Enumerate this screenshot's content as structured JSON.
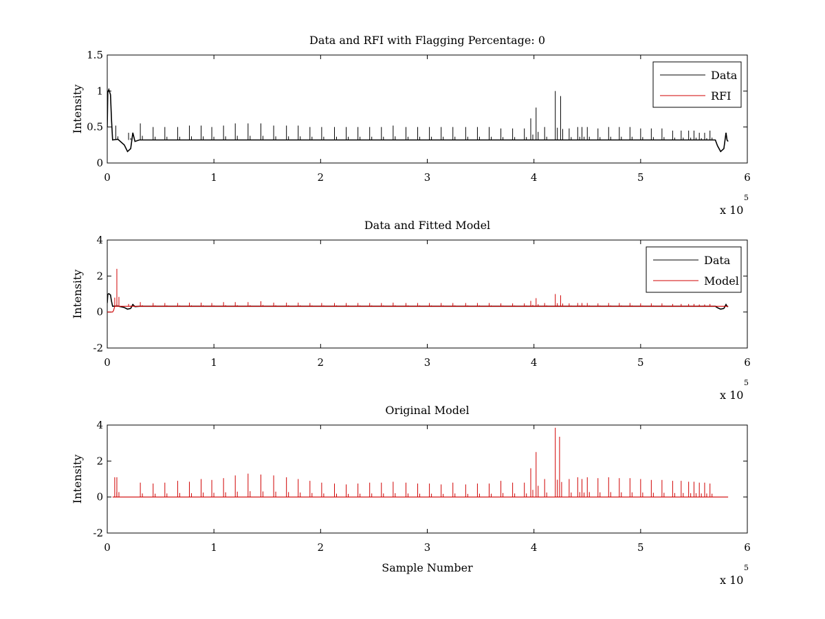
{
  "colors": {
    "data": "#000000",
    "rfi": "#d00000",
    "model": "#d00000",
    "axes": "#000000",
    "background": "#ffffff"
  },
  "chart_data": [
    {
      "type": "line",
      "title": "Data and RFI with Flagging Percentage: 0",
      "xlabel": "",
      "ylabel": "Intensity",
      "xlim": [
        0,
        6
      ],
      "ylim": [
        0,
        1.5
      ],
      "x_exponent_base": "x 10",
      "x_exponent_power": "5",
      "x_ticks": [
        0,
        1,
        2,
        3,
        4,
        5,
        6
      ],
      "y_ticks": [
        0,
        0.5,
        1,
        1.5
      ],
      "x_tick_labels": [
        "0",
        "1",
        "2",
        "3",
        "4",
        "5",
        "6"
      ],
      "y_tick_labels": [
        "0",
        "0.5",
        "1",
        "1.5"
      ],
      "legend_position": "top-right",
      "grid": false,
      "x_end": 5.82,
      "series": [
        {
          "name": "Data",
          "color": "#000000",
          "baseline": 0.32,
          "points": [
            [
              0,
              0.5
            ],
            [
              0.005,
              0.98
            ],
            [
              0.015,
              1.02
            ],
            [
              0.03,
              0.95
            ],
            [
              0.04,
              0.6
            ],
            [
              0.05,
              0.32
            ],
            [
              0.1,
              0.33
            ],
            [
              0.16,
              0.25
            ],
            [
              0.19,
              0.16
            ],
            [
              0.22,
              0.2
            ],
            [
              0.24,
              0.42
            ],
            [
              0.26,
              0.3
            ],
            [
              0.3,
              0.32
            ],
            [
              5.7,
              0.32
            ],
            [
              5.72,
              0.24
            ],
            [
              5.75,
              0.16
            ],
            [
              5.78,
              0.2
            ],
            [
              5.8,
              0.42
            ],
            [
              5.81,
              0.32
            ],
            [
              5.82,
              0.3
            ]
          ],
          "spikes": [
            [
              0.08,
              0.52
            ],
            [
              0.2,
              0.42
            ],
            [
              0.31,
              0.55
            ],
            [
              0.43,
              0.5
            ],
            [
              0.54,
              0.5
            ],
            [
              0.66,
              0.5
            ],
            [
              0.77,
              0.52
            ],
            [
              0.88,
              0.52
            ],
            [
              0.98,
              0.5
            ],
            [
              1.09,
              0.52
            ],
            [
              1.2,
              0.55
            ],
            [
              1.32,
              0.55
            ],
            [
              1.44,
              0.55
            ],
            [
              1.56,
              0.52
            ],
            [
              1.68,
              0.52
            ],
            [
              1.79,
              0.52
            ],
            [
              1.9,
              0.5
            ],
            [
              2.01,
              0.5
            ],
            [
              2.13,
              0.5
            ],
            [
              2.24,
              0.5
            ],
            [
              2.35,
              0.5
            ],
            [
              2.46,
              0.5
            ],
            [
              2.57,
              0.5
            ],
            [
              2.68,
              0.52
            ],
            [
              2.8,
              0.5
            ],
            [
              2.91,
              0.5
            ],
            [
              3.02,
              0.5
            ],
            [
              3.13,
              0.5
            ],
            [
              3.24,
              0.5
            ],
            [
              3.36,
              0.5
            ],
            [
              3.47,
              0.5
            ],
            [
              3.58,
              0.5
            ],
            [
              3.69,
              0.48
            ],
            [
              3.8,
              0.48
            ],
            [
              3.91,
              0.48
            ],
            [
              3.97,
              0.62
            ],
            [
              4.02,
              0.77
            ],
            [
              4.1,
              0.5
            ],
            [
              4.2,
              1.0
            ],
            [
              4.25,
              0.93
            ],
            [
              4.33,
              0.48
            ],
            [
              4.41,
              0.5
            ],
            [
              4.45,
              0.5
            ],
            [
              4.5,
              0.5
            ],
            [
              4.6,
              0.48
            ],
            [
              4.7,
              0.5
            ],
            [
              4.8,
              0.5
            ],
            [
              4.9,
              0.5
            ],
            [
              5.0,
              0.48
            ],
            [
              5.1,
              0.48
            ],
            [
              5.2,
              0.48
            ],
            [
              5.3,
              0.45
            ],
            [
              5.38,
              0.45
            ],
            [
              5.45,
              0.45
            ],
            [
              5.5,
              0.45
            ],
            [
              5.55,
              0.42
            ],
            [
              5.6,
              0.42
            ],
            [
              5.65,
              0.45
            ]
          ]
        },
        {
          "name": "RFI",
          "color": "#d00000",
          "points": []
        }
      ]
    },
    {
      "type": "line",
      "title": "Data and Fitted Model",
      "xlabel": "",
      "ylabel": "Intensity",
      "xlim": [
        0,
        6
      ],
      "ylim": [
        -2,
        4
      ],
      "x_exponent_base": "x 10",
      "x_exponent_power": "5",
      "x_ticks": [
        0,
        1,
        2,
        3,
        4,
        5,
        6
      ],
      "y_ticks": [
        -2,
        0,
        2,
        4
      ],
      "x_tick_labels": [
        "0",
        "1",
        "2",
        "3",
        "4",
        "5",
        "6"
      ],
      "y_tick_labels": [
        "-2",
        "0",
        "2",
        "4"
      ],
      "legend_position": "top-right",
      "grid": false,
      "x_end": 5.82,
      "series": [
        {
          "name": "Data",
          "color": "#000000",
          "points": [
            [
              0,
              0.5
            ],
            [
              0.005,
              0.98
            ],
            [
              0.015,
              1.02
            ],
            [
              0.03,
              0.95
            ],
            [
              0.04,
              0.6
            ],
            [
              0.05,
              0.32
            ],
            [
              0.1,
              0.33
            ],
            [
              0.16,
              0.25
            ],
            [
              0.19,
              0.16
            ],
            [
              0.22,
              0.2
            ],
            [
              0.24,
              0.42
            ],
            [
              0.26,
              0.3
            ],
            [
              0.3,
              0.32
            ],
            [
              5.7,
              0.32
            ],
            [
              5.72,
              0.24
            ],
            [
              5.75,
              0.16
            ],
            [
              5.78,
              0.2
            ],
            [
              5.8,
              0.42
            ],
            [
              5.81,
              0.32
            ],
            [
              5.82,
              0.3
            ]
          ]
        },
        {
          "name": "Model",
          "color": "#d00000",
          "baseline": 0.32,
          "points": [
            [
              0,
              0
            ],
            [
              0.05,
              0
            ],
            [
              0.06,
              0.1
            ],
            [
              0.07,
              0.32
            ],
            [
              5.82,
              0.32
            ]
          ],
          "spikes": [
            [
              0.07,
              0.8
            ],
            [
              0.09,
              2.4
            ],
            [
              0.2,
              0.45
            ],
            [
              0.31,
              0.55
            ],
            [
              0.43,
              0.5
            ],
            [
              0.54,
              0.5
            ],
            [
              0.66,
              0.5
            ],
            [
              0.77,
              0.52
            ],
            [
              0.88,
              0.52
            ],
            [
              0.98,
              0.5
            ],
            [
              1.09,
              0.55
            ],
            [
              1.2,
              0.55
            ],
            [
              1.32,
              0.55
            ],
            [
              1.44,
              0.6
            ],
            [
              1.56,
              0.52
            ],
            [
              1.68,
              0.52
            ],
            [
              1.79,
              0.52
            ],
            [
              1.9,
              0.5
            ],
            [
              2.01,
              0.5
            ],
            [
              2.13,
              0.5
            ],
            [
              2.24,
              0.5
            ],
            [
              2.35,
              0.5
            ],
            [
              2.46,
              0.5
            ],
            [
              2.57,
              0.5
            ],
            [
              2.68,
              0.52
            ],
            [
              2.8,
              0.5
            ],
            [
              2.91,
              0.5
            ],
            [
              3.02,
              0.5
            ],
            [
              3.13,
              0.5
            ],
            [
              3.24,
              0.5
            ],
            [
              3.36,
              0.5
            ],
            [
              3.47,
              0.5
            ],
            [
              3.58,
              0.5
            ],
            [
              3.69,
              0.48
            ],
            [
              3.8,
              0.48
            ],
            [
              3.91,
              0.48
            ],
            [
              3.97,
              0.62
            ],
            [
              4.02,
              0.77
            ],
            [
              4.1,
              0.5
            ],
            [
              4.2,
              1.0
            ],
            [
              4.25,
              0.93
            ],
            [
              4.33,
              0.48
            ],
            [
              4.41,
              0.5
            ],
            [
              4.45,
              0.5
            ],
            [
              4.5,
              0.5
            ],
            [
              4.6,
              0.48
            ],
            [
              4.7,
              0.5
            ],
            [
              4.8,
              0.5
            ],
            [
              4.9,
              0.5
            ],
            [
              5.0,
              0.48
            ],
            [
              5.1,
              0.48
            ],
            [
              5.2,
              0.48
            ],
            [
              5.3,
              0.45
            ],
            [
              5.38,
              0.45
            ],
            [
              5.45,
              0.45
            ],
            [
              5.5,
              0.45
            ],
            [
              5.55,
              0.42
            ],
            [
              5.6,
              0.42
            ],
            [
              5.65,
              0.45
            ]
          ]
        }
      ]
    },
    {
      "type": "line",
      "title": "Original Model",
      "xlabel": "Sample Number",
      "ylabel": "Intensity",
      "xlim": [
        0,
        6
      ],
      "ylim": [
        -2,
        4
      ],
      "x_exponent_base": "x 10",
      "x_exponent_power": "5",
      "x_ticks": [
        0,
        1,
        2,
        3,
        4,
        5,
        6
      ],
      "y_ticks": [
        -2,
        0,
        2,
        4
      ],
      "x_tick_labels": [
        "0",
        "1",
        "2",
        "3",
        "4",
        "5",
        "6"
      ],
      "y_tick_labels": [
        "-2",
        "0",
        "2",
        "4"
      ],
      "legend_position": "none",
      "grid": false,
      "x_end": 5.82,
      "series": [
        {
          "name": "",
          "color": "#d00000",
          "baseline": 0.0,
          "points": [
            [
              0.05,
              0.0
            ],
            [
              5.82,
              0.0
            ]
          ],
          "spikes": [
            [
              0.07,
              1.1
            ],
            [
              0.09,
              1.1
            ],
            [
              0.31,
              0.8
            ],
            [
              0.43,
              0.75
            ],
            [
              0.54,
              0.8
            ],
            [
              0.66,
              0.9
            ],
            [
              0.77,
              0.85
            ],
            [
              0.88,
              1.0
            ],
            [
              0.98,
              0.95
            ],
            [
              1.09,
              1.05
            ],
            [
              1.2,
              1.2
            ],
            [
              1.32,
              1.3
            ],
            [
              1.44,
              1.25
            ],
            [
              1.56,
              1.2
            ],
            [
              1.68,
              1.1
            ],
            [
              1.79,
              1.0
            ],
            [
              1.9,
              0.9
            ],
            [
              2.01,
              0.8
            ],
            [
              2.13,
              0.75
            ],
            [
              2.24,
              0.7
            ],
            [
              2.35,
              0.75
            ],
            [
              2.46,
              0.8
            ],
            [
              2.57,
              0.8
            ],
            [
              2.68,
              0.85
            ],
            [
              2.8,
              0.8
            ],
            [
              2.91,
              0.75
            ],
            [
              3.02,
              0.75
            ],
            [
              3.13,
              0.7
            ],
            [
              3.24,
              0.8
            ],
            [
              3.36,
              0.7
            ],
            [
              3.47,
              0.75
            ],
            [
              3.58,
              0.75
            ],
            [
              3.69,
              0.9
            ],
            [
              3.8,
              0.8
            ],
            [
              3.91,
              0.8
            ],
            [
              3.97,
              1.6
            ],
            [
              4.02,
              2.5
            ],
            [
              4.1,
              1.0
            ],
            [
              4.2,
              3.85
            ],
            [
              4.24,
              3.35
            ],
            [
              4.33,
              1.0
            ],
            [
              4.41,
              1.1
            ],
            [
              4.45,
              1.0
            ],
            [
              4.5,
              1.1
            ],
            [
              4.6,
              1.05
            ],
            [
              4.7,
              1.1
            ],
            [
              4.8,
              1.05
            ],
            [
              4.9,
              1.05
            ],
            [
              5.0,
              1.0
            ],
            [
              5.1,
              0.95
            ],
            [
              5.2,
              0.95
            ],
            [
              5.3,
              0.9
            ],
            [
              5.38,
              0.9
            ],
            [
              5.45,
              0.85
            ],
            [
              5.5,
              0.85
            ],
            [
              5.55,
              0.8
            ],
            [
              5.6,
              0.8
            ],
            [
              5.65,
              0.75
            ]
          ]
        }
      ]
    }
  ]
}
